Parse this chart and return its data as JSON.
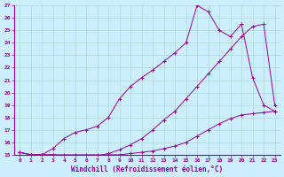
{
  "xlabel": "Windchill (Refroidissement éolien,°C)",
  "background_color": "#cceeff",
  "grid_color": "#aaddcc",
  "line_color": "#990099",
  "xlim": [
    -0.5,
    23.5
  ],
  "ylim": [
    15,
    27
  ],
  "yticks": [
    15,
    16,
    17,
    18,
    19,
    20,
    21,
    22,
    23,
    24,
    25,
    26,
    27
  ],
  "xticks": [
    0,
    1,
    2,
    3,
    4,
    5,
    6,
    7,
    8,
    9,
    10,
    11,
    12,
    13,
    14,
    15,
    16,
    17,
    18,
    19,
    20,
    21,
    22,
    23
  ],
  "series": [
    {
      "x": [
        0,
        1,
        2,
        3,
        4,
        5,
        6,
        7,
        8,
        9,
        10,
        11,
        12,
        13,
        14,
        15,
        16,
        17,
        18,
        19,
        20,
        21,
        22,
        23
      ],
      "y": [
        15.2,
        15.0,
        15.0,
        15.0,
        15.0,
        15.0,
        15.0,
        15.0,
        15.0,
        15.0,
        15.1,
        15.2,
        15.3,
        15.5,
        15.7,
        16.0,
        16.5,
        17.0,
        17.5,
        17.9,
        18.2,
        18.3,
        18.4,
        18.5
      ]
    },
    {
      "x": [
        0,
        1,
        2,
        3,
        4,
        5,
        6,
        7,
        8,
        9,
        10,
        11,
        12,
        13,
        14,
        15,
        16,
        17,
        18,
        19,
        20,
        21,
        22,
        23
      ],
      "y": [
        15.2,
        15.0,
        15.0,
        15.0,
        14.9,
        14.9,
        14.9,
        14.9,
        15.1,
        15.4,
        15.8,
        16.3,
        17.0,
        17.8,
        18.5,
        19.5,
        20.5,
        21.5,
        22.5,
        23.5,
        24.5,
        25.3,
        25.5,
        19.0
      ]
    },
    {
      "x": [
        0,
        1,
        2,
        3,
        4,
        5,
        6,
        7,
        8,
        9,
        10,
        11,
        12,
        13,
        14,
        15,
        16,
        17,
        18,
        19,
        20,
        21,
        22,
        23
      ],
      "y": [
        15.2,
        15.0,
        15.0,
        15.5,
        16.3,
        16.8,
        17.0,
        17.3,
        18.0,
        19.5,
        20.5,
        21.2,
        21.8,
        22.5,
        23.2,
        24.0,
        27.0,
        26.5,
        25.0,
        24.5,
        25.5,
        21.2,
        19.0,
        18.5
      ]
    }
  ]
}
